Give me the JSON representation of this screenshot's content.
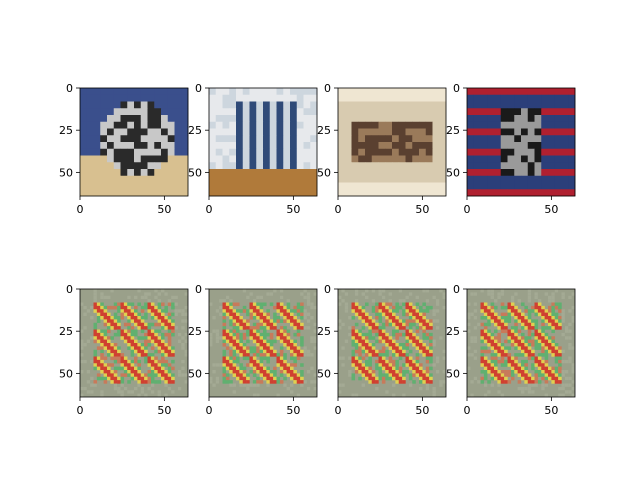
{
  "figure": {
    "background": "#ffffff"
  },
  "chart_data": [
    {
      "type": "heatmap",
      "row": 0,
      "col": 0,
      "content": "image of a fluffy dog on a blue couch",
      "palette": [
        "#3a4f8c",
        "#d8c090",
        "#2a2a2a",
        "#c8c8c8"
      ],
      "xlim": [
        0,
        64
      ],
      "ylim": [
        64,
        0
      ],
      "xticks": [
        0,
        50
      ],
      "yticks": [
        0,
        25,
        50
      ],
      "title": "",
      "xlabel": "",
      "ylabel": ""
    },
    {
      "type": "heatmap",
      "row": 0,
      "col": 1,
      "content": "image of a blue radiator against a white wall",
      "palette": [
        "#cdd6de",
        "#2f4a78",
        "#b07a3a",
        "#e7e9ec"
      ],
      "xlim": [
        0,
        64
      ],
      "ylim": [
        64,
        0
      ],
      "xticks": [
        0,
        50
      ],
      "yticks": [
        0,
        25,
        50
      ],
      "title": "",
      "xlabel": "",
      "ylabel": ""
    },
    {
      "type": "heatmap",
      "row": 0,
      "col": 2,
      "content": "image of a woman lying in a bathtub",
      "palette": [
        "#d8cbb0",
        "#9a7a5a",
        "#efe6d2",
        "#5a4030"
      ],
      "xlim": [
        0,
        64
      ],
      "ylim": [
        64,
        0
      ],
      "xticks": [
        0,
        50
      ],
      "yticks": [
        0,
        25,
        50
      ],
      "title": "",
      "xlabel": "",
      "ylabel": ""
    },
    {
      "type": "heatmap",
      "row": 0,
      "col": 3,
      "content": "image of a person holding a power drill",
      "palette": [
        "#2b3f7a",
        "#b02030",
        "#9a9a9a",
        "#1a1a1a"
      ],
      "xlim": [
        0,
        64
      ],
      "ylim": [
        64,
        0
      ],
      "xticks": [
        0,
        50
      ],
      "yticks": [
        0,
        25,
        50
      ],
      "title": "",
      "xlabel": "",
      "ylabel": ""
    },
    {
      "type": "heatmap",
      "row": 1,
      "col": 0,
      "content": "repeating colorful checkerboard pattern",
      "palette": [
        "#9aa08a",
        "#d04030",
        "#e0d050",
        "#60b070"
      ],
      "xlim": [
        0,
        64
      ],
      "ylim": [
        64,
        0
      ],
      "xticks": [
        0,
        50
      ],
      "yticks": [
        0,
        25,
        50
      ],
      "title": "",
      "xlabel": "",
      "ylabel": ""
    },
    {
      "type": "heatmap",
      "row": 1,
      "col": 1,
      "content": "repeating colorful checkerboard pattern",
      "palette": [
        "#9aa08a",
        "#d04030",
        "#e0d050",
        "#60b070"
      ],
      "xlim": [
        0,
        64
      ],
      "ylim": [
        64,
        0
      ],
      "xticks": [
        0,
        50
      ],
      "yticks": [
        0,
        25,
        50
      ],
      "title": "",
      "xlabel": "",
      "ylabel": ""
    },
    {
      "type": "heatmap",
      "row": 1,
      "col": 2,
      "content": "repeating colorful checkerboard pattern",
      "palette": [
        "#9aa08a",
        "#d04030",
        "#e0d050",
        "#60b070"
      ],
      "xlim": [
        0,
        64
      ],
      "ylim": [
        64,
        0
      ],
      "xticks": [
        0,
        50
      ],
      "yticks": [
        0,
        25,
        50
      ],
      "title": "",
      "xlabel": "",
      "ylabel": ""
    },
    {
      "type": "heatmap",
      "row": 1,
      "col": 3,
      "content": "repeating colorful checkerboard pattern",
      "palette": [
        "#9aa08a",
        "#d04030",
        "#e0d050",
        "#60b070"
      ],
      "xlim": [
        0,
        64
      ],
      "ylim": [
        64,
        0
      ],
      "xticks": [
        0,
        50
      ],
      "yticks": [
        0,
        25,
        50
      ],
      "title": "",
      "xlabel": "",
      "ylabel": ""
    }
  ]
}
